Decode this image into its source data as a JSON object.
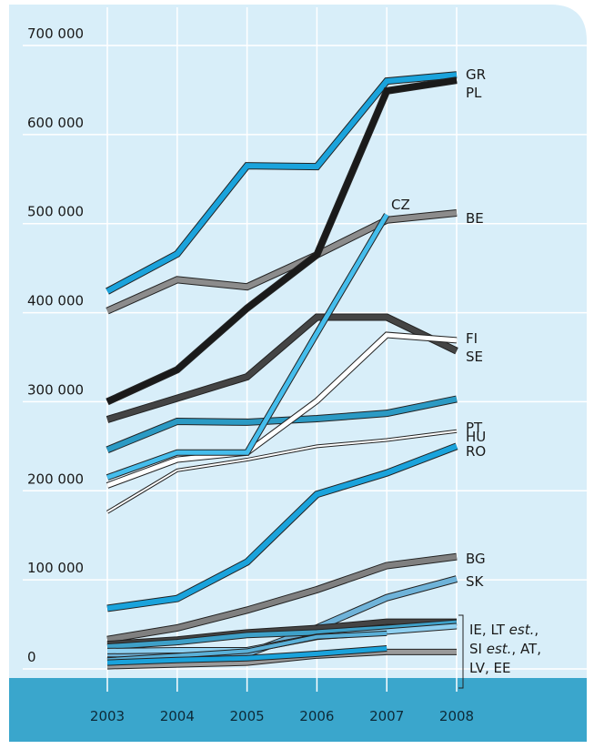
{
  "chart_data": {
    "type": "line",
    "x": [
      2003,
      2004,
      2005,
      2006,
      2007,
      2008
    ],
    "xlim": [
      2003,
      2008
    ],
    "ylim": [
      0,
      700000
    ],
    "yticks": [
      0,
      {
        "value": 100000,
        "label": "100 000"
      },
      {
        "value": 200000,
        "label": "200 000"
      },
      {
        "value": 300000,
        "label": "300 000"
      },
      {
        "value": 400000,
        "label": "400 000"
      },
      {
        "value": 500000,
        "label": "500 000"
      },
      {
        "value": 600000,
        "label": "600 000"
      },
      {
        "value": 700000,
        "label": "700 000"
      }
    ],
    "grid": true,
    "series": [
      {
        "name": "GR",
        "color": "#1aa3dc",
        "width": 6,
        "values": [
          424000,
          466000,
          565000,
          564000,
          660000,
          667000
        ]
      },
      {
        "name": "BE",
        "color": "#8c8c8c",
        "width": 6,
        "values": [
          402000,
          437000,
          429000,
          465000,
          504000,
          512000
        ]
      },
      {
        "name": "SE",
        "color": "#444444",
        "width": 6,
        "values": [
          280000,
          304000,
          328000,
          395000,
          395000,
          357000
        ]
      },
      {
        "name": "PT",
        "color": "#2b9ac4",
        "width": 6,
        "values": [
          246000,
          278000,
          277000,
          281000,
          287000,
          303000
        ]
      },
      {
        "name": "HU",
        "color": "#ffffff",
        "width": 2,
        "values": [
          176000,
          223000,
          235000,
          250000,
          257000,
          267000
        ]
      },
      {
        "name": "FI",
        "color": "#ffffff",
        "width": 5,
        "values": [
          206000,
          235000,
          243000,
          301000,
          375000,
          369000
        ]
      },
      {
        "name": "CZ",
        "color": "#45bdec",
        "width": 5,
        "values": [
          215000,
          243000,
          243000,
          377000,
          510000,
          null
        ]
      },
      {
        "name": "PL",
        "color": "#1a1a1a",
        "width": 6,
        "values": [
          300000,
          336000,
          405000,
          465000,
          649000,
          661000
        ]
      },
      {
        "name": "RO",
        "color": "#1aa3dc",
        "width": 6,
        "values": [
          68000,
          79000,
          120000,
          196000,
          220000,
          250000
        ]
      },
      {
        "name": "BG",
        "color": "#808080",
        "width": 6,
        "values": [
          33000,
          46000,
          66000,
          89000,
          116000,
          126000
        ]
      },
      {
        "name": "SK",
        "color": "#6fb3d9",
        "width": 6,
        "values": [
          17000,
          17000,
          17000,
          46000,
          80000,
          101000
        ]
      },
      {
        "name": "IE",
        "color": "#444444",
        "width": 5,
        "values": [
          28000,
          33000,
          41000,
          46000,
          53000,
          53000
        ]
      },
      {
        "name": "LV",
        "color": "#9a9a9a",
        "width": 5,
        "values": [
          3000,
          5000,
          7000,
          15000,
          19000,
          19000
        ]
      },
      {
        "name": "AT",
        "color": "#3ea0c8",
        "width": 5,
        "values": [
          25000,
          30000,
          38000,
          41000,
          46000,
          52000
        ]
      },
      {
        "name": "SI est.",
        "color": "#8fd0f0",
        "width": 5,
        "values": [
          20000,
          21000,
          21000,
          36000,
          42000,
          48000
        ]
      },
      {
        "name": "EE",
        "color": "#5ab0d8",
        "width": 4,
        "values": [
          10000,
          15000,
          20000,
          36000,
          40000,
          null
        ]
      },
      {
        "name": "LT est.",
        "color": "#1aa3dc",
        "width": 5,
        "values": [
          7000,
          10000,
          12000,
          17000,
          23000,
          null
        ]
      }
    ],
    "group_label": [
      [
        "IE, LT ",
        "est.",
        ","
      ],
      [
        "SI ",
        "est.",
        ", AT,"
      ],
      [
        "LV, EE"
      ]
    ]
  }
}
